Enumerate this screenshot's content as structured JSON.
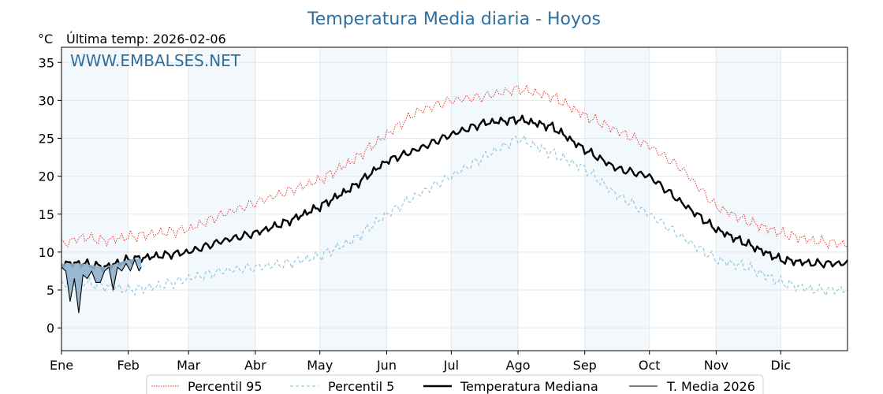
{
  "chart_data": {
    "type": "line",
    "title": "Temperatura Media diaria - Hoyos",
    "ylabel": "°C",
    "last_temp_label": "Última temp: 2026-02-06",
    "watermark": "WWW.EMBALSES.NET",
    "ylim": [
      -3,
      37
    ],
    "yticks": [
      0,
      5,
      10,
      15,
      20,
      25,
      30,
      35
    ],
    "xlim": [
      0,
      365
    ],
    "months": [
      {
        "label": "Ene",
        "day": 0
      },
      {
        "label": "Feb",
        "day": 31
      },
      {
        "label": "Mar",
        "day": 59
      },
      {
        "label": "Abr",
        "day": 90
      },
      {
        "label": "May",
        "day": 120
      },
      {
        "label": "Jun",
        "day": 151
      },
      {
        "label": "Jul",
        "day": 181
      },
      {
        "label": "Ago",
        "day": 212
      },
      {
        "label": "Sep",
        "day": 243
      },
      {
        "label": "Oct",
        "day": 273
      },
      {
        "label": "Nov",
        "day": 304
      },
      {
        "label": "Dic",
        "day": 334
      }
    ],
    "shaded_months": [
      "Ene",
      "Mar",
      "May",
      "Jul",
      "Sep",
      "Nov"
    ],
    "grid": true,
    "legend_position": "bottom",
    "series": [
      {
        "name": "Percentil 95",
        "color": "#e8261c",
        "style": "dotted",
        "x": [
          0,
          10,
          20,
          31,
          45,
          59,
          75,
          90,
          105,
          120,
          135,
          151,
          165,
          181,
          196,
          212,
          228,
          243,
          258,
          273,
          288,
          304,
          319,
          334,
          349,
          365
        ],
        "y": [
          11,
          12,
          11.5,
          12,
          12.5,
          13,
          15,
          16.5,
          18,
          19.5,
          22,
          25.5,
          28.5,
          30,
          30.5,
          31.5,
          30.5,
          28,
          26,
          24,
          21,
          16,
          14,
          12.5,
          11.5,
          11
        ]
      },
      {
        "name": "Percentil 5",
        "color": "#8fc9e0",
        "style": "dashed",
        "x": [
          0,
          10,
          20,
          31,
          45,
          59,
          75,
          90,
          105,
          120,
          135,
          151,
          165,
          181,
          196,
          212,
          228,
          243,
          258,
          273,
          288,
          304,
          319,
          334,
          349,
          365
        ],
        "y": [
          6,
          6,
          5.5,
          5,
          5.5,
          6.5,
          7.5,
          8,
          8.5,
          9.5,
          11.5,
          15,
          17.5,
          20,
          22.5,
          25,
          23,
          21,
          17.5,
          15,
          12,
          9,
          8,
          6,
          5,
          5
        ]
      },
      {
        "name": "Temperatura Mediana",
        "color": "#000000",
        "style": "solid-thick",
        "x": [
          0,
          10,
          20,
          31,
          45,
          59,
          75,
          90,
          105,
          120,
          135,
          151,
          165,
          181,
          196,
          212,
          228,
          243,
          258,
          273,
          288,
          304,
          319,
          334,
          349,
          365
        ],
        "y": [
          8.5,
          8.5,
          8,
          9,
          9.5,
          10,
          11.5,
          12.5,
          14,
          16,
          18.5,
          22,
          23.5,
          25.5,
          27,
          27.5,
          26.5,
          23.5,
          21,
          20,
          16.5,
          13,
          11,
          9,
          8.5,
          8.5
        ]
      },
      {
        "name": "T. Media 2026",
        "color": "#000000",
        "fill": "#8eb0cc",
        "style": "solid-thin",
        "x": [
          0,
          2,
          4,
          6,
          8,
          10,
          12,
          14,
          16,
          18,
          20,
          22,
          24,
          26,
          28,
          30,
          32,
          34,
          36,
          37
        ],
        "y": [
          8,
          7.5,
          3.5,
          6.5,
          2,
          7,
          6.5,
          7.5,
          6,
          6,
          7.5,
          8,
          5,
          8,
          7.5,
          8.5,
          7.5,
          9,
          7.5,
          8
        ]
      }
    ]
  }
}
